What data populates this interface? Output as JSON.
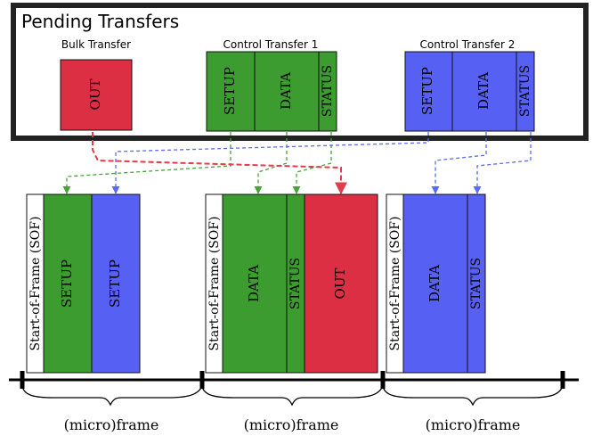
{
  "title": "Pending Transfers",
  "transfers": {
    "bulk": {
      "label": "Bulk Transfer",
      "out": "OUT"
    },
    "control1": {
      "label": "Control Transfer 1",
      "setup": "SETUP",
      "data": "DATA",
      "status": "STATUS"
    },
    "control2": {
      "label": "Control Transfer 2",
      "setup": "SETUP",
      "data": "DATA",
      "status": "STATUS"
    }
  },
  "frames": [
    {
      "sof": "Start-of-Frame (SOF)",
      "packets": [
        "SETUP",
        "SETUP"
      ],
      "label": "(micro)frame"
    },
    {
      "sof": "Start-of-Frame (SOF)",
      "packets": [
        "DATA",
        "STATUS",
        "OUT"
      ],
      "label": "(micro)frame"
    },
    {
      "sof": "Start-of-Frame (SOF)",
      "packets": [
        "DATA",
        "STATUS"
      ],
      "label": "(micro)frame"
    }
  ],
  "colors": {
    "green": "#3c9c30",
    "blue": "#5660f2",
    "red": "#dc2f44",
    "frame_border": "#222222",
    "green_link": "#49a33a",
    "blue_link": "#5b6cf0",
    "red_link": "#e33c4c"
  }
}
